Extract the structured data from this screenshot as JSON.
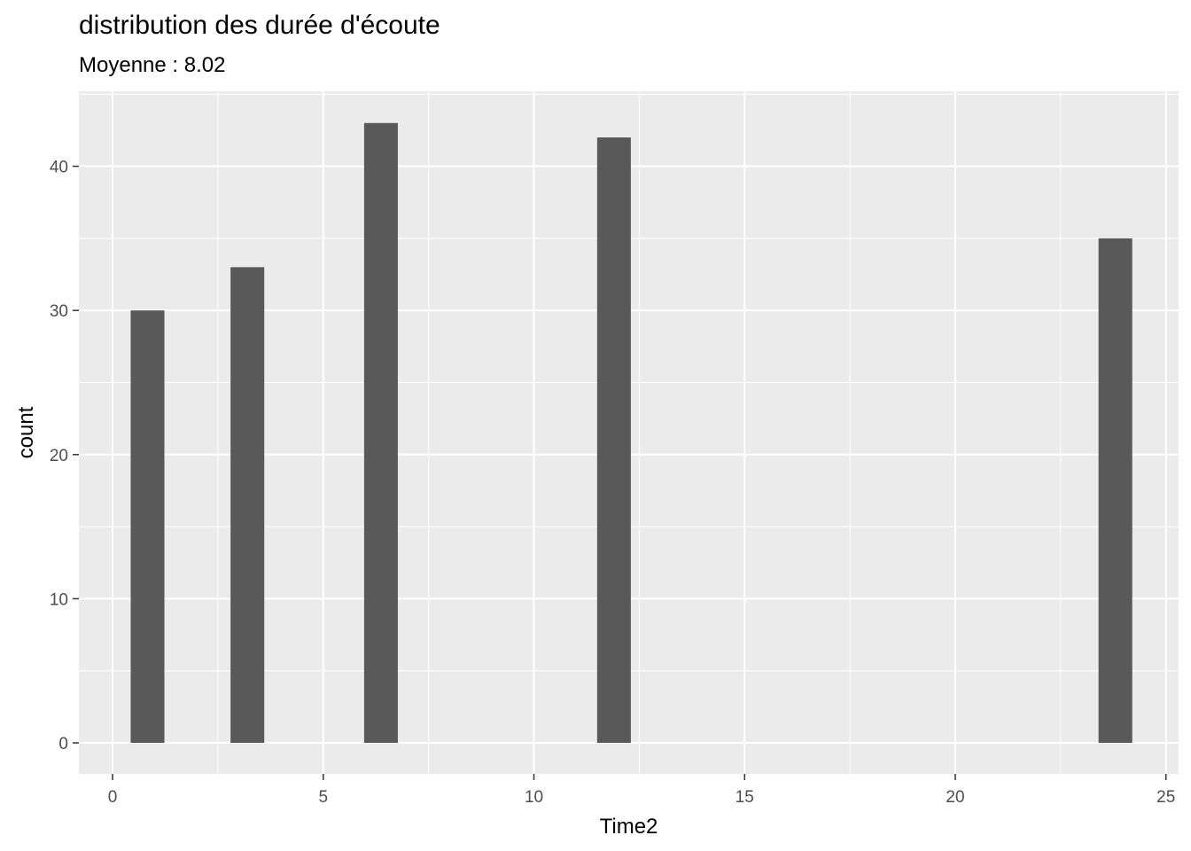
{
  "chart_data": {
    "type": "bar",
    "title": "distribution des durée d'écoute",
    "subtitle": "Moyenne : 8.02",
    "xlabel": "Time2",
    "ylabel": "count",
    "xlim": [
      -0.8,
      25.3
    ],
    "ylim": [
      -2.15,
      45.2
    ],
    "xticks": [
      0,
      5,
      10,
      15,
      20,
      25
    ],
    "yticks": [
      0,
      10,
      20,
      30,
      40
    ],
    "bins": [
      {
        "x0": 0.43,
        "x1": 1.23,
        "count": 30
      },
      {
        "x0": 2.8,
        "x1": 3.6,
        "count": 33
      },
      {
        "x0": 5.97,
        "x1": 6.77,
        "count": 43
      },
      {
        "x0": 11.5,
        "x1": 12.3,
        "count": 42
      },
      {
        "x0": 23.4,
        "x1": 24.2,
        "count": 35
      }
    ],
    "grid": true,
    "bar_color": "#595959",
    "panel_color": "#EBEBEB",
    "gridline_color": "#FFFFFF"
  }
}
